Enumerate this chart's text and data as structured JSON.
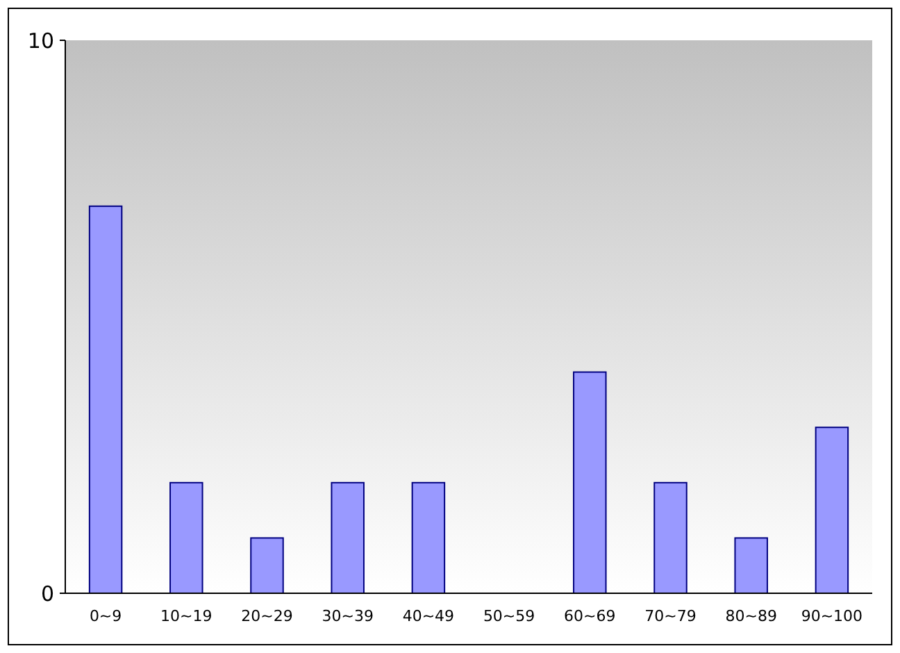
{
  "chart_data": {
    "type": "bar",
    "categories": [
      "0~9",
      "10~19",
      "20~29",
      "30~39",
      "40~49",
      "50~59",
      "60~69",
      "70~79",
      "80~89",
      "90~100"
    ],
    "values": [
      7,
      2,
      1,
      2,
      2,
      0,
      4,
      2,
      1,
      3
    ],
    "color": "#9999ff",
    "ylim": [
      0,
      10
    ],
    "yticks": [
      0,
      10
    ]
  }
}
